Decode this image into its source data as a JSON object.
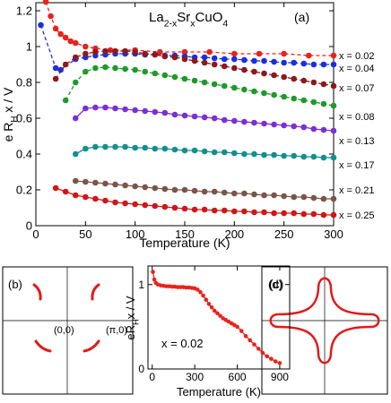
{
  "chart_data": [
    {
      "type": "line",
      "title": [
        "La",
        "2-x",
        "Sr",
        "x",
        "CuO",
        "4"
      ],
      "panel": "(a)",
      "xlabel": "Temperature (K)",
      "ylabel": [
        "e R",
        "H",
        " x / V"
      ],
      "xlim": [
        0,
        300
      ],
      "xticks": [
        0,
        50,
        100,
        150,
        200,
        250,
        300
      ],
      "ylim": [
        0,
        1.245
      ],
      "yticks": [
        0,
        0.2,
        0.4,
        0.6,
        0.8,
        1,
        1.2
      ],
      "legend": "right",
      "series": [
        {
          "name": "x = 0.02",
          "color": "#e8231c",
          "dashed": true,
          "x": [
            10,
            15,
            20,
            25,
            30,
            35,
            40,
            50,
            60,
            75,
            100,
            125,
            150,
            175,
            200,
            225,
            250,
            275,
            300
          ],
          "values": [
            1.25,
            1.17,
            1.1,
            1.07,
            1.05,
            1.03,
            1.02,
            1.0,
            0.99,
            0.98,
            0.98,
            0.97,
            0.97,
            0.97,
            0.96,
            0.96,
            0.96,
            0.95,
            0.95
          ]
        },
        {
          "name": "x = 0.04",
          "color": "#1a2fe0",
          "dashed": true,
          "x": [
            5,
            20,
            25,
            40,
            50,
            60,
            70,
            80,
            90,
            100,
            110,
            120,
            130,
            140,
            150,
            160,
            170,
            180,
            190,
            200,
            210,
            220,
            230,
            240,
            250,
            260,
            270,
            280,
            290,
            300
          ],
          "values": [
            1.12,
            0.88,
            0.87,
            0.93,
            0.94,
            0.95,
            0.955,
            0.96,
            0.96,
            0.96,
            0.955,
            0.955,
            0.95,
            0.95,
            0.945,
            0.94,
            0.94,
            0.935,
            0.93,
            0.93,
            0.925,
            0.92,
            0.92,
            0.915,
            0.91,
            0.91,
            0.905,
            0.9,
            0.9,
            0.9
          ]
        },
        {
          "name": "x = 0.07",
          "color": "#8b1a1a",
          "dashed": true,
          "x": [
            20,
            30,
            40,
            50,
            60,
            70,
            80,
            90,
            100,
            110,
            120,
            130,
            140,
            150,
            160,
            170,
            180,
            190,
            200,
            210,
            220,
            230,
            240,
            250,
            260,
            270,
            280,
            290,
            300
          ],
          "values": [
            0.82,
            0.9,
            0.94,
            0.96,
            0.97,
            0.975,
            0.975,
            0.975,
            0.97,
            0.96,
            0.955,
            0.945,
            0.94,
            0.93,
            0.92,
            0.91,
            0.9,
            0.89,
            0.88,
            0.87,
            0.86,
            0.85,
            0.84,
            0.83,
            0.82,
            0.81,
            0.8,
            0.79,
            0.78
          ]
        },
        {
          "name": "x = 0.08",
          "color": "#1e9a2a",
          "dashed": true,
          "x": [
            30,
            40,
            50,
            60,
            70,
            80,
            90,
            100,
            110,
            120,
            130,
            140,
            150,
            160,
            170,
            180,
            190,
            200,
            210,
            220,
            230,
            240,
            250,
            260,
            270,
            280,
            290,
            300
          ],
          "values": [
            0.7,
            0.8,
            0.86,
            0.88,
            0.885,
            0.88,
            0.875,
            0.87,
            0.86,
            0.85,
            0.84,
            0.83,
            0.82,
            0.81,
            0.8,
            0.79,
            0.78,
            0.77,
            0.76,
            0.75,
            0.74,
            0.73,
            0.72,
            0.71,
            0.7,
            0.69,
            0.68,
            0.67
          ]
        },
        {
          "name": "x = 0.13",
          "color": "#7b2fd6",
          "dashed": false,
          "x": [
            40,
            50,
            60,
            70,
            80,
            90,
            100,
            110,
            120,
            130,
            140,
            150,
            160,
            170,
            180,
            190,
            200,
            210,
            220,
            230,
            240,
            250,
            260,
            270,
            280,
            290,
            300
          ],
          "values": [
            0.6,
            0.655,
            0.66,
            0.66,
            0.655,
            0.65,
            0.645,
            0.64,
            0.635,
            0.63,
            0.62,
            0.615,
            0.61,
            0.605,
            0.6,
            0.59,
            0.585,
            0.58,
            0.575,
            0.57,
            0.565,
            0.56,
            0.555,
            0.55,
            0.54,
            0.535,
            0.53
          ]
        },
        {
          "name": "x = 0.17",
          "color": "#12908e",
          "dashed": false,
          "x": [
            40,
            50,
            60,
            70,
            80,
            90,
            100,
            110,
            120,
            130,
            140,
            150,
            160,
            170,
            180,
            190,
            200,
            210,
            220,
            230,
            240,
            250,
            260,
            270,
            280,
            290,
            300
          ],
          "values": [
            0.4,
            0.43,
            0.44,
            0.44,
            0.44,
            0.44,
            0.435,
            0.435,
            0.43,
            0.43,
            0.425,
            0.42,
            0.42,
            0.415,
            0.41,
            0.41,
            0.405,
            0.4,
            0.4,
            0.395,
            0.395,
            0.39,
            0.39,
            0.385,
            0.385,
            0.38,
            0.38
          ]
        },
        {
          "name": "x = 0.21",
          "color": "#7a5548",
          "dashed": false,
          "x": [
            40,
            50,
            60,
            70,
            80,
            90,
            100,
            110,
            120,
            130,
            140,
            150,
            160,
            170,
            180,
            190,
            200,
            210,
            220,
            230,
            240,
            250,
            260,
            270,
            280,
            290,
            300
          ],
          "values": [
            0.25,
            0.245,
            0.24,
            0.235,
            0.23,
            0.225,
            0.22,
            0.215,
            0.21,
            0.205,
            0.2,
            0.2,
            0.195,
            0.19,
            0.19,
            0.185,
            0.18,
            0.18,
            0.175,
            0.17,
            0.17,
            0.165,
            0.16,
            0.16,
            0.155,
            0.15,
            0.15
          ]
        },
        {
          "name": "x = 0.25",
          "color": "#d01616",
          "dashed": false,
          "x": [
            20,
            30,
            40,
            50,
            60,
            70,
            80,
            90,
            100,
            110,
            120,
            130,
            140,
            150,
            160,
            170,
            180,
            190,
            200,
            210,
            220,
            230,
            240,
            250,
            260,
            270,
            280,
            290,
            300
          ],
          "values": [
            0.21,
            0.19,
            0.17,
            0.16,
            0.15,
            0.14,
            0.13,
            0.125,
            0.12,
            0.115,
            0.11,
            0.105,
            0.1,
            0.095,
            0.09,
            0.09,
            0.085,
            0.085,
            0.08,
            0.08,
            0.075,
            0.075,
            0.07,
            0.07,
            0.07,
            0.065,
            0.065,
            0.06,
            0.06
          ]
        }
      ]
    },
    {
      "type": "line",
      "panel": "(c)",
      "annotation": "x = 0.02",
      "xlabel": "Temperature (K)",
      "ylabel": [
        "eR",
        "H",
        "x / V"
      ],
      "xlim": [
        -30,
        970
      ],
      "xticks": [
        0,
        300,
        600,
        900
      ],
      "ylim": [
        0,
        1.22
      ],
      "yticks": [
        0,
        1
      ],
      "series": [
        {
          "color": "#e8231c",
          "dashed": false,
          "x": [
            5,
            15,
            25,
            40,
            60,
            80,
            100,
            120,
            140,
            160,
            180,
            200,
            220,
            240,
            260,
            280,
            300,
            320,
            340,
            360,
            380,
            400,
            420,
            440,
            460,
            480,
            500,
            520,
            540,
            560,
            580,
            600,
            630,
            660,
            690,
            720,
            750,
            780,
            810,
            840,
            870,
            900
          ],
          "values": [
            1.15,
            1.06,
            1.02,
            1.0,
            0.99,
            0.985,
            0.98,
            0.98,
            0.975,
            0.975,
            0.97,
            0.97,
            0.97,
            0.965,
            0.965,
            0.96,
            0.955,
            0.94,
            0.91,
            0.87,
            0.82,
            0.77,
            0.73,
            0.69,
            0.66,
            0.63,
            0.6,
            0.58,
            0.56,
            0.54,
            0.52,
            0.5,
            0.45,
            0.39,
            0.34,
            0.29,
            0.24,
            0.19,
            0.15,
            0.12,
            0.09,
            0.07
          ]
        }
      ]
    }
  ],
  "panels": {
    "b": {
      "label": "(b)",
      "origin": "(0,0)",
      "zone": "(π,0)"
    },
    "d": {
      "label": "(d)"
    }
  }
}
